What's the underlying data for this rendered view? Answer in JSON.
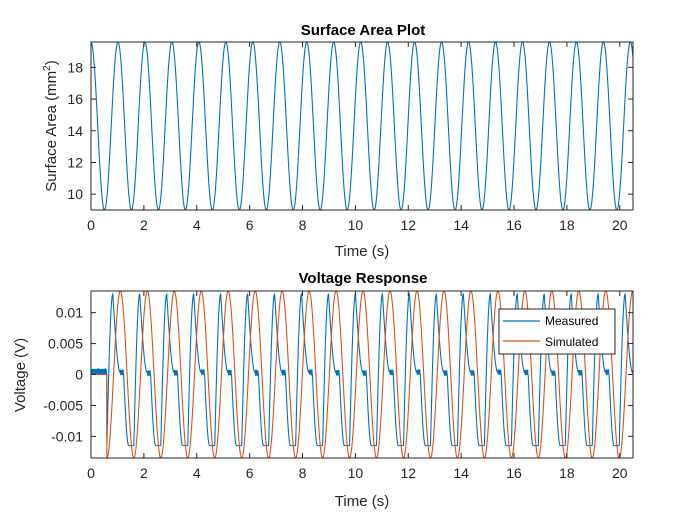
{
  "chart_data": [
    {
      "type": "line",
      "title": "Surface Area Plot",
      "xlabel": "Time (s)",
      "ylabel": "Surface Area (mm",
      "ylabel_sup": "2",
      "ylabel_end": ")",
      "xlim": [
        0,
        20.5
      ],
      "ylim": [
        9,
        19.6
      ],
      "xticks": [
        "0",
        "2",
        "4",
        "6",
        "8",
        "10",
        "12",
        "14",
        "16",
        "18",
        "20"
      ],
      "yticks": [
        "10",
        "12",
        "14",
        "16",
        "18"
      ],
      "series": [
        {
          "color": "#0072BD",
          "waveform": "cosine",
          "period_s": 1.02,
          "min": 9,
          "max": 19.6,
          "clipped_at_top": true,
          "x_range": [
            0,
            20.5
          ]
        }
      ]
    },
    {
      "type": "line",
      "title": "Voltage Response",
      "xlabel": "Time (s)",
      "ylabel": "Voltage (V)",
      "xlim": [
        0,
        20.5
      ],
      "ylim": [
        -0.0135,
        0.0135
      ],
      "xticks": [
        "0",
        "2",
        "4",
        "6",
        "8",
        "10",
        "12",
        "14",
        "16",
        "18",
        "20"
      ],
      "yticks": [
        "-0.01",
        "-0.005",
        "0",
        "0.005",
        "0.01"
      ],
      "legend_position": "upper-right",
      "series": [
        {
          "name": "Measured",
          "color": "#0072BD",
          "baseline_segment": {
            "x": [
              0,
              0.6
            ],
            "value": 0.0005
          },
          "period_s": 1.02,
          "peak": 0.013,
          "trough": -0.0115,
          "plateau": 0.0003,
          "start_s": 0.6
        },
        {
          "name": "Simulated",
          "color": "#D95319",
          "baseline_segment": {
            "x": [
              0,
              0.6
            ],
            "value": 0
          },
          "period_s": 1.02,
          "amplitude": 0.0135,
          "start_s": 0.6
        }
      ]
    }
  ]
}
